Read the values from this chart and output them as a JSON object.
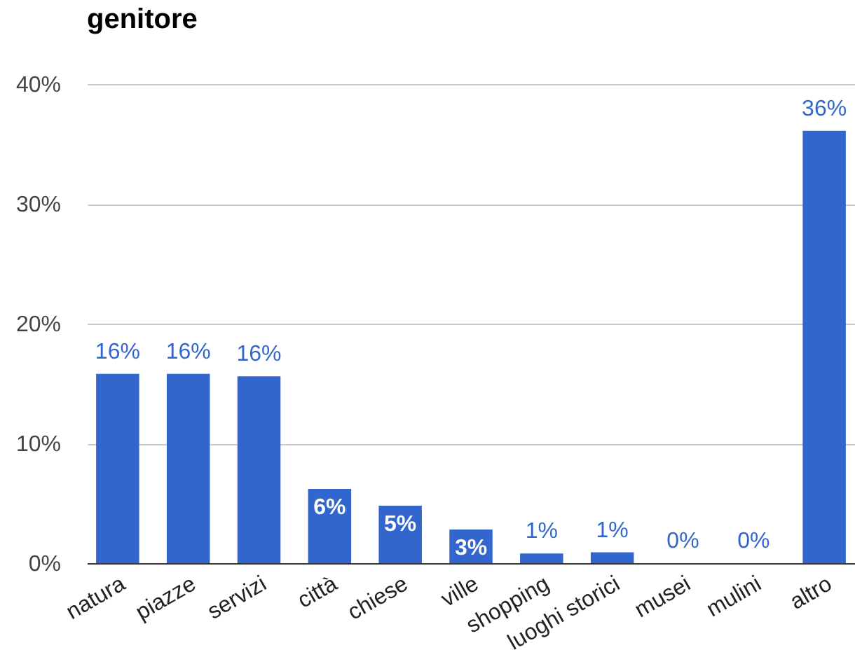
{
  "chart_data": {
    "type": "bar",
    "title": "genitore",
    "categories": [
      "natura",
      "piazze",
      "servizi",
      "città",
      "chiese",
      "ville",
      "shopping",
      "luoghi storici",
      "musei",
      "mulini",
      "altro"
    ],
    "values": [
      15.8,
      15.8,
      15.6,
      6.2,
      4.8,
      2.8,
      0.8,
      0.9,
      0,
      0,
      36.1
    ],
    "color": "#3366cc",
    "value_labels": [
      "16%",
      "16%",
      "16%",
      "6%",
      "5%",
      "3%",
      "1%",
      "1%",
      "0%",
      "0%",
      "36%"
    ],
    "ylim": [
      0,
      40
    ],
    "yticks": [
      {
        "value": 0,
        "label": "0%"
      },
      {
        "value": 10,
        "label": "10%"
      },
      {
        "value": 20,
        "label": "20%"
      },
      {
        "value": 30,
        "label": "30%"
      },
      {
        "value": 40,
        "label": "40%"
      }
    ],
    "grid": "y"
  }
}
